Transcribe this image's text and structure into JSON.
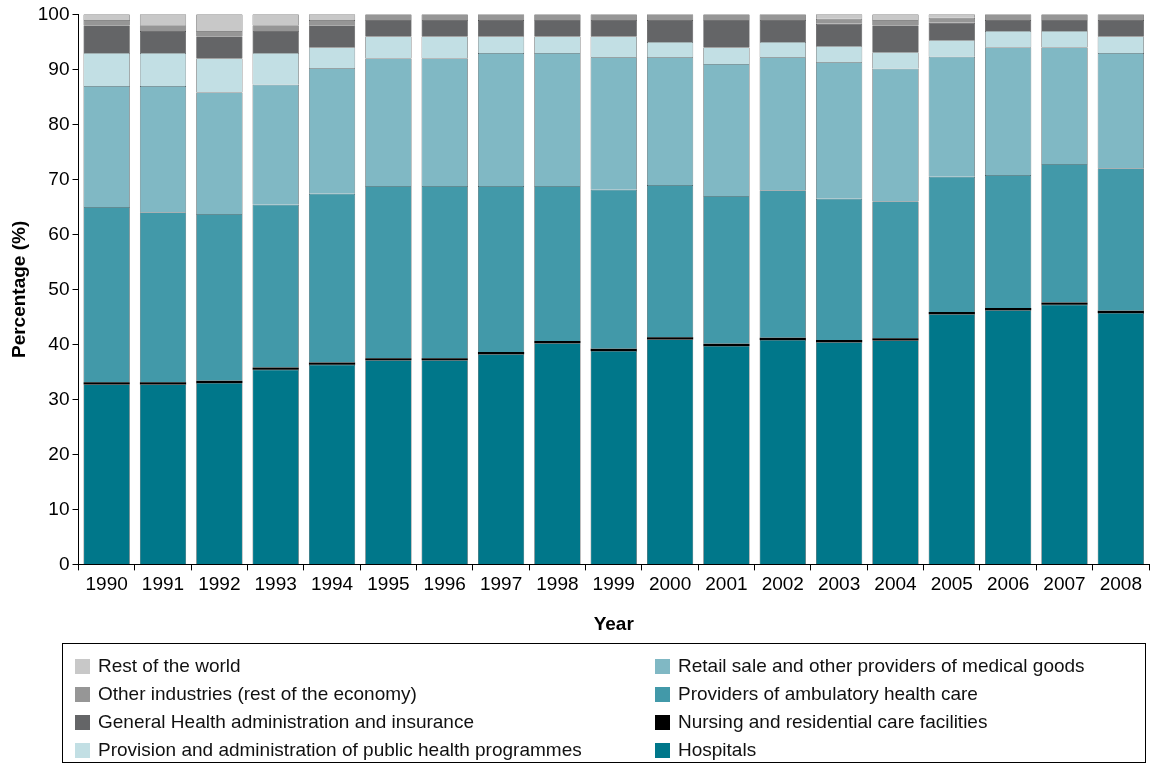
{
  "chart_data": {
    "type": "bar",
    "stacked": true,
    "xlabel": "Year",
    "ylabel": "Percentage (%)",
    "categories": [
      "1990",
      "1991",
      "1992",
      "1993",
      "1994",
      "1995",
      "1996",
      "1997",
      "1998",
      "1999",
      "2000",
      "2001",
      "2002",
      "2003",
      "2004",
      "2005",
      "2006",
      "2007",
      "2008"
    ],
    "ylim": [
      0,
      100
    ],
    "yticks": [
      0,
      10,
      20,
      30,
      40,
      50,
      60,
      70,
      80,
      90,
      100
    ],
    "grid": false,
    "legend": "bottom",
    "series": [
      {
        "name": "Hospitals",
        "color": "#00778a",
        "values": [
          32.7,
          32.7,
          33,
          35.4,
          36.3,
          37.1,
          37.1,
          38.2,
          40.2,
          38.8,
          40.9,
          39.7,
          40.8,
          40.4,
          40.7,
          45.5,
          46.2,
          47.2,
          45.7
        ]
      },
      {
        "name": "Nursing and residential care facilities",
        "color": "#000000",
        "values": [
          0.4,
          0.4,
          0.4,
          0.4,
          0.4,
          0.4,
          0.4,
          0.4,
          0.4,
          0.4,
          0.4,
          0.4,
          0.4,
          0.4,
          0.4,
          0.4,
          0.4,
          0.4,
          0.4
        ]
      },
      {
        "name": "Providers of ambulatory health care",
        "color": "#4299a9",
        "values": [
          31.9,
          30.9,
          30.3,
          29.6,
          30.7,
          31.3,
          31.3,
          30.2,
          28.2,
          28.9,
          27.7,
          26.9,
          26.8,
          25.7,
          24.9,
          24.6,
          24.2,
          25.2,
          25.9
        ]
      },
      {
        "name": "Retail sale and other providers of medical goods",
        "color": "#80b8c4",
        "values": [
          22,
          23,
          22.1,
          21.8,
          22.8,
          23.2,
          23.2,
          24.2,
          24.2,
          24.1,
          23.2,
          24,
          24.2,
          24.8,
          24.1,
          21.8,
          23.2,
          21.2,
          21
        ]
      },
      {
        "name": "Provision and administration of public health programmes",
        "color": "#c2dfe4",
        "values": [
          6,
          6,
          6.2,
          5.8,
          3.8,
          4,
          4,
          3,
          3,
          3.8,
          2.8,
          3,
          2.8,
          2.9,
          3,
          3,
          3,
          3,
          3
        ]
      },
      {
        "name": "General Health administration and insurance",
        "color": "#646567",
        "values": [
          5,
          4,
          4,
          4,
          4,
          3,
          3,
          3,
          3,
          3,
          4,
          5,
          4,
          4.1,
          4.9,
          3.2,
          2,
          2,
          3
        ]
      },
      {
        "name": "Other industries (rest of the economy)",
        "color": "#969696",
        "values": [
          1,
          1,
          1,
          1,
          1,
          1,
          1,
          1,
          1,
          1,
          1,
          1,
          1,
          0.9,
          1,
          0.9,
          1,
          1,
          1
        ]
      },
      {
        "name": "Rest of the world",
        "color": "#c8c8c8",
        "values": [
          1,
          2,
          3,
          2,
          1,
          0,
          0,
          0,
          0,
          0,
          0,
          0,
          0,
          0.8,
          1,
          0.6,
          0,
          0,
          0
        ]
      }
    ]
  }
}
